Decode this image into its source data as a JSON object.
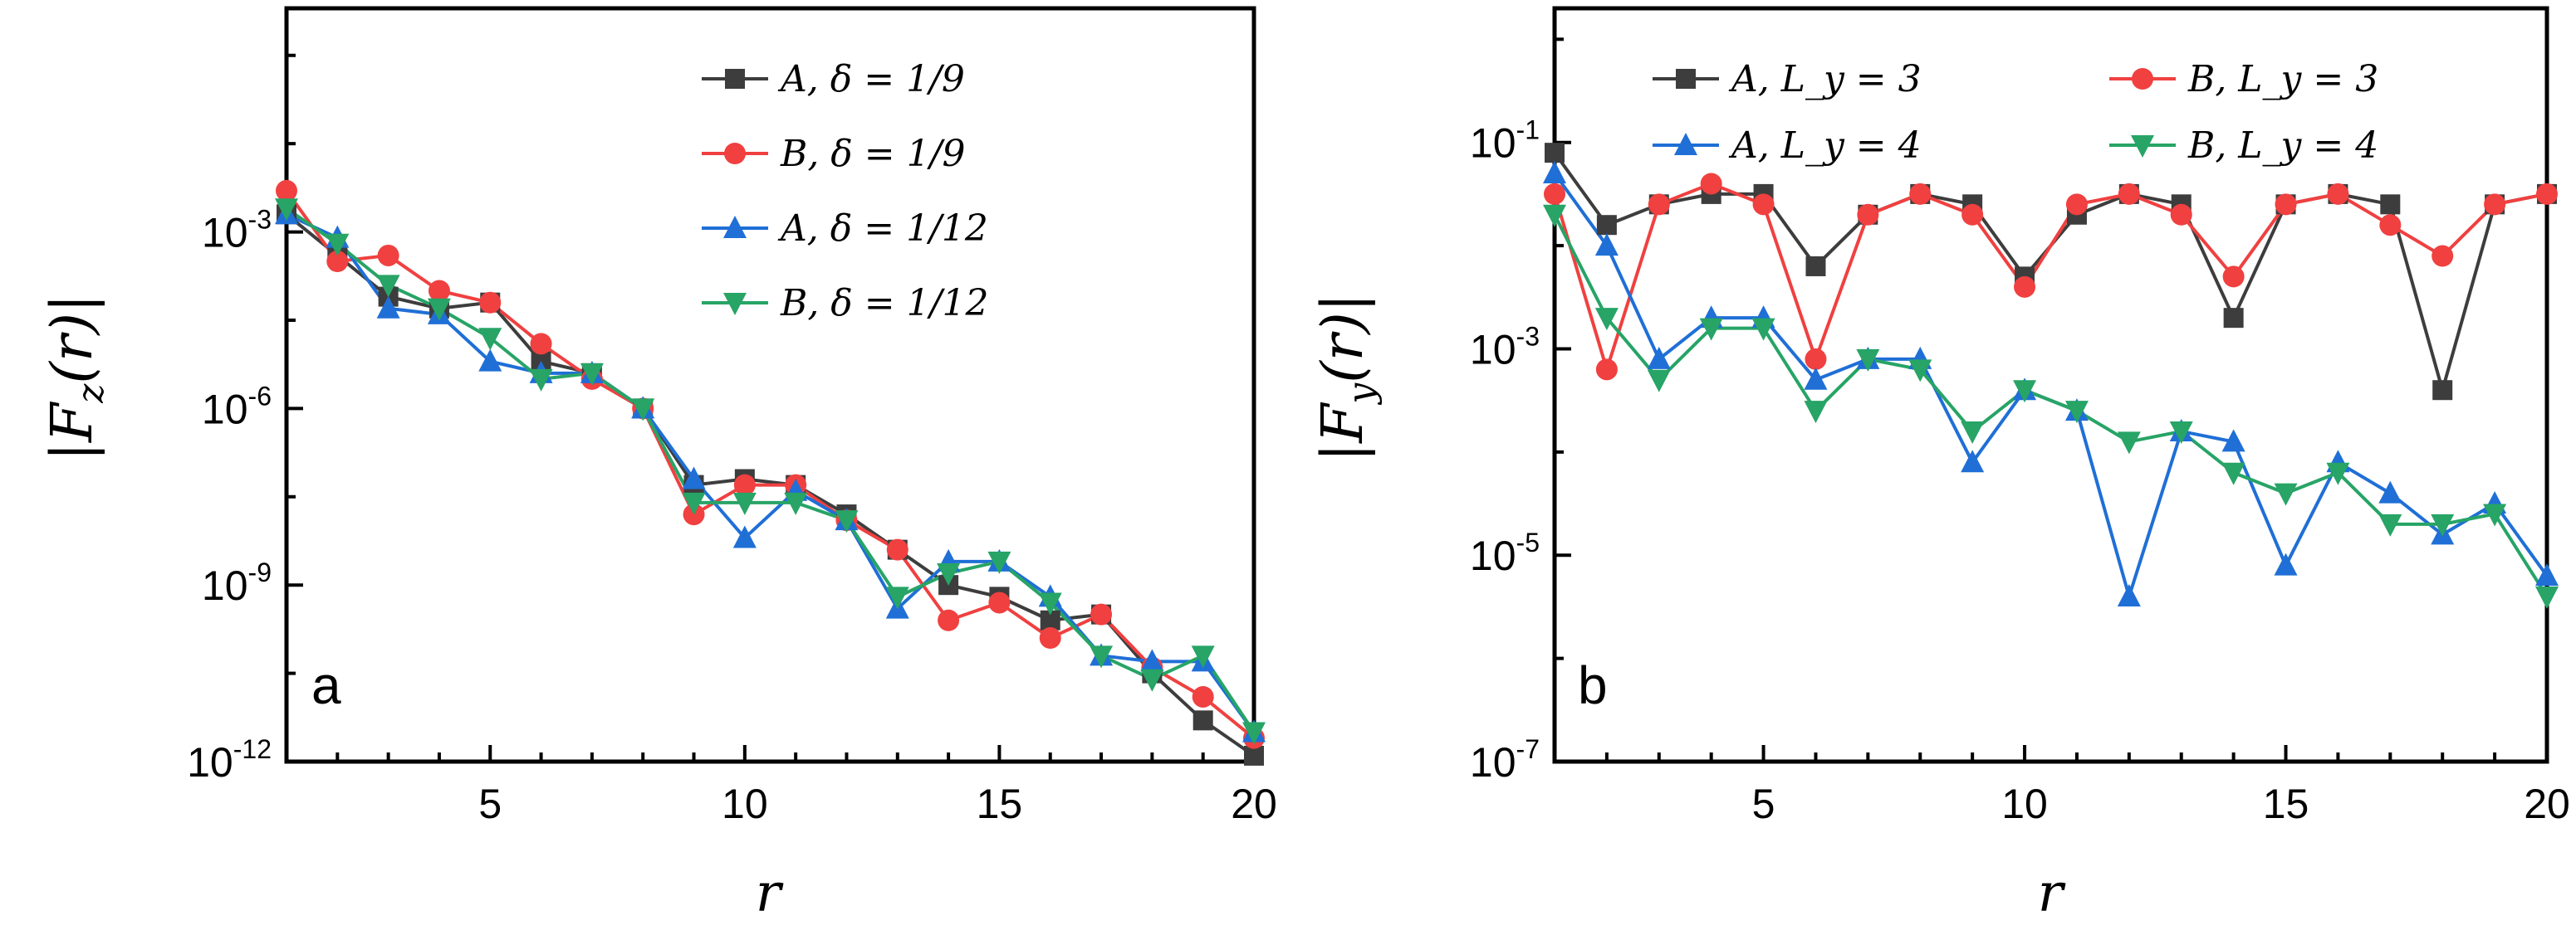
{
  "chart_data": [
    {
      "type": "line",
      "panel_label": "a",
      "xlabel": "r",
      "ylabel": "|F_z(r)|",
      "xlim": [
        1,
        20
      ],
      "ylim_log10": [
        -12,
        0.8
      ],
      "yscale": "log",
      "x_ticks": [
        5,
        10,
        15,
        20
      ],
      "y_ticks": [
        {
          "exp": -3,
          "base": "10",
          "power": "-3"
        },
        {
          "exp": -6,
          "base": "10",
          "power": "-6"
        },
        {
          "exp": -9,
          "base": "10",
          "power": "-9"
        },
        {
          "exp": -12,
          "base": "10",
          "power": "-12"
        }
      ],
      "legend_position": "top-right",
      "x": [
        1,
        2,
        3,
        4,
        5,
        6,
        7,
        8,
        9,
        10,
        11,
        12,
        13,
        14,
        15,
        16,
        17,
        18,
        19,
        20
      ],
      "series": [
        {
          "name": "A, δ = 1/9",
          "color": "#3d3d3d",
          "marker": "square",
          "values": [
            -2.7,
            -3.4,
            -4.1,
            -4.3,
            -4.2,
            -5.2,
            -5.4,
            -6.0,
            -7.3,
            -7.2,
            -7.3,
            -7.8,
            -8.4,
            -9.0,
            -9.2,
            -9.6,
            -9.5,
            -10.5,
            -11.3,
            -11.9
          ]
        },
        {
          "name": "B, δ = 1/9",
          "color": "#f04040",
          "marker": "circle",
          "values": [
            -2.3,
            -3.5,
            -3.4,
            -4.0,
            -4.2,
            -4.9,
            -5.5,
            -6.0,
            -7.8,
            -7.3,
            -7.3,
            -7.9,
            -8.4,
            -9.6,
            -9.3,
            -9.9,
            -9.5,
            -10.4,
            -10.9,
            -11.6
          ]
        },
        {
          "name": "A, δ = 1/12",
          "color": "#1f6fd6",
          "marker": "triangle-up",
          "values": [
            -2.7,
            -3.1,
            -4.3,
            -4.4,
            -5.2,
            -5.4,
            -5.4,
            -6.0,
            -7.2,
            -8.2,
            -7.4,
            -7.9,
            -9.4,
            -8.6,
            -8.6,
            -9.2,
            -10.2,
            -10.3,
            -10.3,
            -11.5
          ]
        },
        {
          "name": "B, δ = 1/12",
          "color": "#27a466",
          "marker": "triangle-down",
          "values": [
            -2.6,
            -3.2,
            -3.9,
            -4.3,
            -4.8,
            -5.5,
            -5.4,
            -6.0,
            -7.6,
            -7.6,
            -7.6,
            -7.9,
            -9.2,
            -8.8,
            -8.6,
            -9.3,
            -10.2,
            -10.6,
            -10.2,
            -11.5
          ]
        }
      ],
      "legend": [
        "A, δ = 1/9",
        "B, δ = 1/9",
        "A, δ = 1/12",
        "B, δ = 1/12"
      ]
    },
    {
      "type": "line",
      "panel_label": "b",
      "xlabel": "r",
      "ylabel": "|F_y(r)|",
      "xlim": [
        1,
        20
      ],
      "ylim_log10": [
        -7,
        0.3
      ],
      "yscale": "log",
      "x_ticks": [
        5,
        10,
        15,
        20
      ],
      "y_ticks": [
        {
          "exp": -1,
          "base": "10",
          "power": "-1"
        },
        {
          "exp": -3,
          "base": "10",
          "power": "-3"
        },
        {
          "exp": -5,
          "base": "10",
          "power": "-5"
        },
        {
          "exp": -7,
          "base": "10",
          "power": "-7"
        }
      ],
      "legend_position": "top",
      "x": [
        1,
        2,
        3,
        4,
        5,
        6,
        7,
        8,
        9,
        10,
        11,
        12,
        13,
        14,
        15,
        16,
        17,
        18,
        19,
        20
      ],
      "series": [
        {
          "name": "A, L_y = 3",
          "color": "#3d3d3d",
          "marker": "square",
          "values": [
            -1.1,
            -1.8,
            -1.6,
            -1.5,
            -1.5,
            -2.2,
            -1.7,
            -1.5,
            -1.6,
            -2.3,
            -1.7,
            -1.5,
            -1.6,
            -2.7,
            -1.6,
            -1.5,
            -1.6,
            -3.4,
            -1.6,
            -1.5
          ]
        },
        {
          "name": "B, L_y = 3",
          "color": "#f04040",
          "marker": "circle",
          "values": [
            -1.5,
            -3.2,
            -1.6,
            -1.4,
            -1.6,
            -3.1,
            -1.7,
            -1.5,
            -1.7,
            -2.4,
            -1.6,
            -1.5,
            -1.7,
            -2.3,
            -1.6,
            -1.5,
            -1.8,
            -2.1,
            -1.6,
            -1.5
          ]
        },
        {
          "name": "A, L_y = 4",
          "color": "#1f6fd6",
          "marker": "triangle-up",
          "values": [
            -1.3,
            -2.0,
            -3.1,
            -2.7,
            -2.7,
            -3.3,
            -3.1,
            -3.1,
            -4.1,
            -3.4,
            -3.6,
            -5.4,
            -3.8,
            -3.9,
            -5.1,
            -4.1,
            -4.4,
            -4.8,
            -4.5,
            -5.2
          ]
        },
        {
          "name": "B, L_y = 4",
          "color": "#27a466",
          "marker": "triangle-down",
          "values": [
            -1.7,
            -2.7,
            -3.3,
            -2.8,
            -2.8,
            -3.6,
            -3.1,
            -3.2,
            -3.8,
            -3.4,
            -3.6,
            -3.9,
            -3.8,
            -4.2,
            -4.4,
            -4.2,
            -4.7,
            -4.7,
            -4.6,
            -5.4
          ]
        }
      ],
      "legend": [
        "A, L_y = 3",
        "B, L_y = 3",
        "A, L_y = 4",
        "B, L_y = 4"
      ]
    }
  ]
}
